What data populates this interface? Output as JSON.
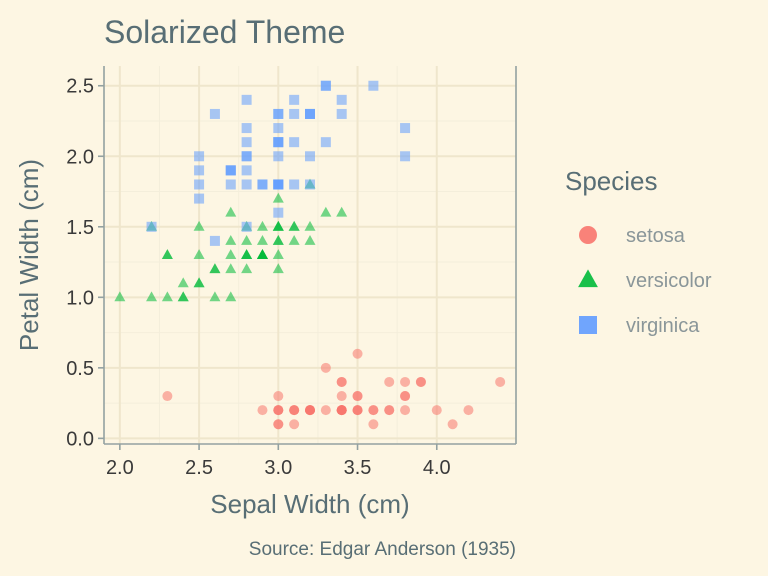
{
  "chart_data": {
    "type": "scatter",
    "title": "Solarized Theme",
    "xlabel": "Sepal Width (cm)",
    "ylabel": "Petal Width (cm)",
    "caption": "Source: Edgar Anderson (1935)",
    "xlim": [
      1.9,
      4.5
    ],
    "ylim": [
      -0.04,
      2.64
    ],
    "x_ticks": [
      2.0,
      2.5,
      3.0,
      3.5,
      4.0
    ],
    "x_tick_labels": [
      "2.0",
      "2.5",
      "3.0",
      "3.5",
      "4.0"
    ],
    "y_ticks": [
      0.0,
      0.5,
      1.0,
      1.5,
      2.0,
      2.5
    ],
    "y_tick_labels": [
      "0.0",
      "0.5",
      "1.0",
      "1.5",
      "2.0",
      "2.5"
    ],
    "grid": true,
    "legend": {
      "title": "Species",
      "position": "right"
    },
    "series": [
      {
        "name": "setosa",
        "color": "#f8766d",
        "shape": "circle",
        "points": [
          [
            3.5,
            0.2
          ],
          [
            3.0,
            0.2
          ],
          [
            3.2,
            0.2
          ],
          [
            3.1,
            0.2
          ],
          [
            3.6,
            0.2
          ],
          [
            3.9,
            0.4
          ],
          [
            3.4,
            0.3
          ],
          [
            3.4,
            0.2
          ],
          [
            2.9,
            0.2
          ],
          [
            3.1,
            0.1
          ],
          [
            3.7,
            0.2
          ],
          [
            3.4,
            0.2
          ],
          [
            3.0,
            0.1
          ],
          [
            3.0,
            0.1
          ],
          [
            4.0,
            0.2
          ],
          [
            4.4,
            0.4
          ],
          [
            3.9,
            0.4
          ],
          [
            3.5,
            0.3
          ],
          [
            3.8,
            0.3
          ],
          [
            3.8,
            0.3
          ],
          [
            3.4,
            0.2
          ],
          [
            3.7,
            0.4
          ],
          [
            3.6,
            0.2
          ],
          [
            3.3,
            0.5
          ],
          [
            3.4,
            0.2
          ],
          [
            3.0,
            0.2
          ],
          [
            3.4,
            0.4
          ],
          [
            3.5,
            0.2
          ],
          [
            3.4,
            0.2
          ],
          [
            3.2,
            0.2
          ],
          [
            3.1,
            0.2
          ],
          [
            3.4,
            0.4
          ],
          [
            4.1,
            0.1
          ],
          [
            4.2,
            0.2
          ],
          [
            3.1,
            0.2
          ],
          [
            3.2,
            0.2
          ],
          [
            3.5,
            0.2
          ],
          [
            3.6,
            0.1
          ],
          [
            3.0,
            0.2
          ],
          [
            3.4,
            0.2
          ],
          [
            3.5,
            0.3
          ],
          [
            2.3,
            0.3
          ],
          [
            3.2,
            0.2
          ],
          [
            3.5,
            0.6
          ],
          [
            3.8,
            0.4
          ],
          [
            3.0,
            0.3
          ],
          [
            3.8,
            0.2
          ],
          [
            3.2,
            0.2
          ],
          [
            3.7,
            0.2
          ],
          [
            3.3,
            0.2
          ]
        ]
      },
      {
        "name": "versicolor",
        "color": "#00ba38",
        "shape": "triangle",
        "points": [
          [
            3.2,
            1.4
          ],
          [
            3.2,
            1.5
          ],
          [
            3.1,
            1.5
          ],
          [
            2.3,
            1.3
          ],
          [
            2.8,
            1.5
          ],
          [
            2.8,
            1.3
          ],
          [
            3.3,
            1.6
          ],
          [
            2.4,
            1.0
          ],
          [
            2.9,
            1.3
          ],
          [
            2.7,
            1.4
          ],
          [
            2.0,
            1.0
          ],
          [
            3.0,
            1.5
          ],
          [
            2.2,
            1.0
          ],
          [
            2.9,
            1.4
          ],
          [
            2.9,
            1.3
          ],
          [
            3.1,
            1.4
          ],
          [
            3.0,
            1.5
          ],
          [
            2.7,
            1.0
          ],
          [
            2.2,
            1.5
          ],
          [
            2.5,
            1.1
          ],
          [
            3.2,
            1.8
          ],
          [
            2.8,
            1.3
          ],
          [
            2.5,
            1.5
          ],
          [
            2.8,
            1.2
          ],
          [
            2.9,
            1.3
          ],
          [
            3.0,
            1.4
          ],
          [
            2.8,
            1.4
          ],
          [
            3.0,
            1.7
          ],
          [
            2.9,
            1.5
          ],
          [
            2.6,
            1.0
          ],
          [
            2.4,
            1.1
          ],
          [
            2.4,
            1.0
          ],
          [
            2.7,
            1.2
          ],
          [
            2.7,
            1.6
          ],
          [
            3.0,
            1.5
          ],
          [
            3.4,
            1.6
          ],
          [
            3.1,
            1.5
          ],
          [
            2.3,
            1.3
          ],
          [
            3.0,
            1.3
          ],
          [
            2.5,
            1.3
          ],
          [
            2.6,
            1.2
          ],
          [
            3.0,
            1.4
          ],
          [
            2.6,
            1.2
          ],
          [
            2.3,
            1.0
          ],
          [
            2.7,
            1.3
          ],
          [
            3.0,
            1.2
          ],
          [
            2.9,
            1.3
          ],
          [
            2.9,
            1.3
          ],
          [
            2.5,
            1.1
          ],
          [
            2.8,
            1.3
          ]
        ]
      },
      {
        "name": "virginica",
        "color": "#619cff",
        "shape": "square",
        "points": [
          [
            3.3,
            2.5
          ],
          [
            2.7,
            1.9
          ],
          [
            3.0,
            2.1
          ],
          [
            2.9,
            1.8
          ],
          [
            3.0,
            2.2
          ],
          [
            3.0,
            2.1
          ],
          [
            2.5,
            1.7
          ],
          [
            2.9,
            1.8
          ],
          [
            2.5,
            1.8
          ],
          [
            3.6,
            2.5
          ],
          [
            3.2,
            2.0
          ],
          [
            2.7,
            1.9
          ],
          [
            3.0,
            2.1
          ],
          [
            2.5,
            2.0
          ],
          [
            2.8,
            2.4
          ],
          [
            3.2,
            2.3
          ],
          [
            3.0,
            1.8
          ],
          [
            3.8,
            2.2
          ],
          [
            2.6,
            2.3
          ],
          [
            2.2,
            1.5
          ],
          [
            3.2,
            2.3
          ],
          [
            2.8,
            2.0
          ],
          [
            2.8,
            2.0
          ],
          [
            2.7,
            1.8
          ],
          [
            3.3,
            2.1
          ],
          [
            3.2,
            1.8
          ],
          [
            2.8,
            1.8
          ],
          [
            3.0,
            1.8
          ],
          [
            2.8,
            2.1
          ],
          [
            3.0,
            1.6
          ],
          [
            2.8,
            1.9
          ],
          [
            3.8,
            2.0
          ],
          [
            2.8,
            2.2
          ],
          [
            2.8,
            1.5
          ],
          [
            2.6,
            1.4
          ],
          [
            3.0,
            2.3
          ],
          [
            3.4,
            2.4
          ],
          [
            3.1,
            1.8
          ],
          [
            3.0,
            1.8
          ],
          [
            3.1,
            2.1
          ],
          [
            3.1,
            2.4
          ],
          [
            3.1,
            2.3
          ],
          [
            2.7,
            1.9
          ],
          [
            3.2,
            2.3
          ],
          [
            3.3,
            2.5
          ],
          [
            3.0,
            2.3
          ],
          [
            2.5,
            1.9
          ],
          [
            3.0,
            2.0
          ],
          [
            3.4,
            2.3
          ],
          [
            3.0,
            1.8
          ]
        ]
      }
    ]
  }
}
